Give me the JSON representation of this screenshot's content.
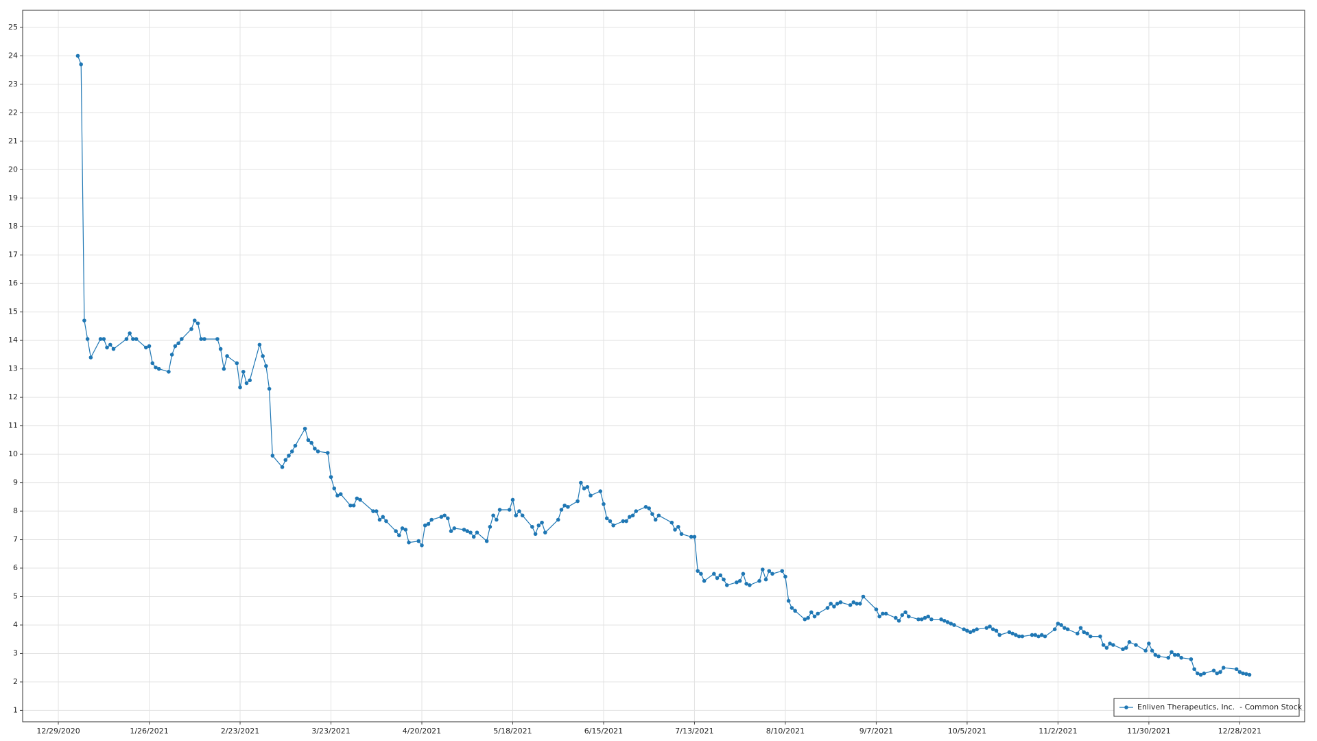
{
  "chart_data": {
    "type": "line",
    "x": [
      "1/4/2021",
      "1/5/2021",
      "1/6/2021",
      "1/7/2021",
      "1/8/2021",
      "1/11/2021",
      "1/12/2021",
      "1/13/2021",
      "1/14/2021",
      "1/15/2021",
      "1/19/2021",
      "1/20/2021",
      "1/21/2021",
      "1/22/2021",
      "1/25/2021",
      "1/26/2021",
      "1/27/2021",
      "1/28/2021",
      "1/29/2021",
      "2/1/2021",
      "2/2/2021",
      "2/3/2021",
      "2/4/2021",
      "2/5/2021",
      "2/8/2021",
      "2/9/2021",
      "2/10/2021",
      "2/11/2021",
      "2/12/2021",
      "2/16/2021",
      "2/17/2021",
      "2/18/2021",
      "2/19/2021",
      "2/22/2021",
      "2/23/2021",
      "2/24/2021",
      "2/25/2021",
      "2/26/2021",
      "3/1/2021",
      "3/2/2021",
      "3/3/2021",
      "3/4/2021",
      "3/5/2021",
      "3/8/2021",
      "3/9/2021",
      "3/10/2021",
      "3/11/2021",
      "3/12/2021",
      "3/15/2021",
      "3/16/2021",
      "3/17/2021",
      "3/18/2021",
      "3/19/2021",
      "3/22/2021",
      "3/23/2021",
      "3/24/2021",
      "3/25/2021",
      "3/26/2021",
      "3/29/2021",
      "3/30/2021",
      "3/31/2021",
      "4/1/2021",
      "4/5/2021",
      "4/6/2021",
      "4/7/2021",
      "4/8/2021",
      "4/9/2021",
      "4/12/2021",
      "4/13/2021",
      "4/14/2021",
      "4/15/2021",
      "4/16/2021",
      "4/19/2021",
      "4/20/2021",
      "4/21/2021",
      "4/22/2021",
      "4/23/2021",
      "4/26/2021",
      "4/27/2021",
      "4/28/2021",
      "4/29/2021",
      "4/30/2021",
      "5/3/2021",
      "5/4/2021",
      "5/5/2021",
      "5/6/2021",
      "5/7/2021",
      "5/10/2021",
      "5/11/2021",
      "5/12/2021",
      "5/13/2021",
      "5/14/2021",
      "5/17/2021",
      "5/18/2021",
      "5/19/2021",
      "5/20/2021",
      "5/21/2021",
      "5/24/2021",
      "5/25/2021",
      "5/26/2021",
      "5/27/2021",
      "5/28/2021",
      "6/1/2021",
      "6/2/2021",
      "6/3/2021",
      "6/4/2021",
      "6/7/2021",
      "6/8/2021",
      "6/9/2021",
      "6/10/2021",
      "6/11/2021",
      "6/14/2021",
      "6/15/2021",
      "6/16/2021",
      "6/17/2021",
      "6/18/2021",
      "6/21/2021",
      "6/22/2021",
      "6/23/2021",
      "6/24/2021",
      "6/25/2021",
      "6/28/2021",
      "6/29/2021",
      "6/30/2021",
      "7/1/2021",
      "7/2/2021",
      "7/6/2021",
      "7/7/2021",
      "7/8/2021",
      "7/9/2021",
      "7/12/2021",
      "7/13/2021",
      "7/14/2021",
      "7/15/2021",
      "7/16/2021",
      "7/19/2021",
      "7/20/2021",
      "7/21/2021",
      "7/22/2021",
      "7/23/2021",
      "7/26/2021",
      "7/27/2021",
      "7/28/2021",
      "7/29/2021",
      "7/30/2021",
      "8/2/2021",
      "8/3/2021",
      "8/4/2021",
      "8/5/2021",
      "8/6/2021",
      "8/9/2021",
      "8/10/2021",
      "8/11/2021",
      "8/12/2021",
      "8/13/2021",
      "8/16/2021",
      "8/17/2021",
      "8/18/2021",
      "8/19/2021",
      "8/20/2021",
      "8/23/2021",
      "8/24/2021",
      "8/25/2021",
      "8/26/2021",
      "8/27/2021",
      "8/30/2021",
      "8/31/2021",
      "9/1/2021",
      "9/2/2021",
      "9/3/2021",
      "9/7/2021",
      "9/8/2021",
      "9/9/2021",
      "9/10/2021",
      "9/13/2021",
      "9/14/2021",
      "9/15/2021",
      "9/16/2021",
      "9/17/2021",
      "9/20/2021",
      "9/21/2021",
      "9/22/2021",
      "9/23/2021",
      "9/24/2021",
      "9/27/2021",
      "9/28/2021",
      "9/29/2021",
      "9/30/2021",
      "10/1/2021",
      "10/4/2021",
      "10/5/2021",
      "10/6/2021",
      "10/7/2021",
      "10/8/2021",
      "10/11/2021",
      "10/12/2021",
      "10/13/2021",
      "10/14/2021",
      "10/15/2021",
      "10/18/2021",
      "10/19/2021",
      "10/20/2021",
      "10/21/2021",
      "10/22/2021",
      "10/25/2021",
      "10/26/2021",
      "10/27/2021",
      "10/28/2021",
      "10/29/2021",
      "11/1/2021",
      "11/2/2021",
      "11/3/2021",
      "11/4/2021",
      "11/5/2021",
      "11/8/2021",
      "11/9/2021",
      "11/10/2021",
      "11/11/2021",
      "11/12/2021",
      "11/15/2021",
      "11/16/2021",
      "11/17/2021",
      "11/18/2021",
      "11/19/2021",
      "11/22/2021",
      "11/23/2021",
      "11/24/2021",
      "11/26/2021",
      "11/29/2021",
      "11/30/2021",
      "12/1/2021",
      "12/2/2021",
      "12/3/2021",
      "12/6/2021",
      "12/7/2021",
      "12/8/2021",
      "12/9/2021",
      "12/10/2021",
      "12/13/2021",
      "12/14/2021",
      "12/15/2021",
      "12/16/2021",
      "12/17/2021",
      "12/20/2021",
      "12/21/2021",
      "12/22/2021",
      "12/23/2021",
      "12/27/2021",
      "12/28/2021",
      "12/29/2021",
      "12/30/2021",
      "12/31/2021"
    ],
    "series": [
      {
        "name": "Enliven Therapeutics, Inc.  - Common Stock",
        "color": "#1f77b4",
        "values": [
          24.0,
          23.7,
          14.7,
          14.05,
          13.4,
          14.05,
          14.05,
          13.75,
          13.85,
          13.7,
          14.05,
          14.25,
          14.05,
          14.05,
          13.75,
          13.8,
          13.2,
          13.05,
          13.0,
          12.9,
          13.5,
          13.8,
          13.9,
          14.05,
          14.4,
          14.7,
          14.6,
          14.05,
          14.05,
          14.05,
          13.7,
          13.0,
          13.45,
          13.2,
          12.35,
          12.9,
          12.5,
          12.6,
          13.85,
          13.45,
          13.1,
          12.3,
          9.95,
          9.55,
          9.8,
          9.95,
          10.1,
          10.3,
          10.9,
          10.5,
          10.4,
          10.2,
          10.1,
          10.05,
          9.2,
          8.8,
          8.55,
          8.6,
          8.2,
          8.2,
          8.45,
          8.4,
          8.0,
          8.0,
          7.7,
          7.8,
          7.65,
          7.3,
          7.15,
          7.4,
          7.35,
          6.9,
          6.95,
          6.8,
          7.5,
          7.55,
          7.7,
          7.8,
          7.85,
          7.75,
          7.3,
          7.4,
          7.35,
          7.3,
          7.25,
          7.1,
          7.25,
          6.95,
          7.45,
          7.85,
          7.7,
          8.05,
          8.05,
          8.4,
          7.85,
          8.0,
          7.85,
          7.45,
          7.2,
          7.5,
          7.6,
          7.25,
          7.7,
          8.05,
          8.2,
          8.15,
          8.35,
          9.0,
          8.8,
          8.85,
          8.55,
          8.7,
          8.25,
          7.75,
          7.65,
          7.5,
          7.65,
          7.65,
          7.8,
          7.85,
          8.0,
          8.15,
          8.1,
          7.9,
          7.7,
          7.85,
          7.6,
          7.35,
          7.45,
          7.2,
          7.1,
          7.1,
          5.9,
          5.8,
          5.55,
          5.8,
          5.65,
          5.75,
          5.6,
          5.4,
          5.5,
          5.55,
          5.8,
          5.45,
          5.4,
          5.55,
          5.95,
          5.6,
          5.9,
          5.8,
          5.9,
          5.7,
          4.85,
          4.6,
          4.5,
          4.2,
          4.25,
          4.45,
          4.3,
          4.4,
          4.6,
          4.75,
          4.65,
          4.75,
          4.8,
          4.7,
          4.8,
          4.75,
          4.75,
          5.0,
          4.55,
          4.3,
          4.4,
          4.4,
          4.25,
          4.15,
          4.35,
          4.45,
          4.3,
          4.2,
          4.2,
          4.25,
          4.3,
          4.2,
          4.2,
          4.15,
          4.1,
          4.05,
          4.0,
          3.85,
          3.8,
          3.75,
          3.8,
          3.85,
          3.9,
          3.95,
          3.85,
          3.8,
          3.65,
          3.75,
          3.7,
          3.65,
          3.6,
          3.6,
          3.65,
          3.65,
          3.6,
          3.65,
          3.6,
          3.85,
          4.05,
          4.0,
          3.9,
          3.85,
          3.7,
          3.9,
          3.75,
          3.7,
          3.6,
          3.6,
          3.3,
          3.2,
          3.35,
          3.3,
          3.15,
          3.2,
          3.4,
          3.3,
          3.1,
          3.35,
          3.1,
          2.95,
          2.9,
          2.85,
          3.05,
          2.95,
          2.95,
          2.85,
          2.8,
          2.45,
          2.3,
          2.25,
          2.3,
          2.4,
          2.3,
          2.35,
          2.5,
          2.45,
          2.35,
          2.3,
          2.28,
          2.25
        ]
      }
    ],
    "xlim": [
      "12/18/2020",
      "1/17/2022"
    ],
    "xticks": [
      "12/29/2020",
      "1/26/2021",
      "2/23/2021",
      "3/23/2021",
      "4/20/2021",
      "5/18/2021",
      "6/15/2021",
      "7/13/2021",
      "8/10/2021",
      "9/7/2021",
      "10/5/2021",
      "11/2/2021",
      "11/30/2021",
      "12/28/2021"
    ],
    "ylim": [
      0.6,
      25.6
    ],
    "yticks": [
      1,
      2,
      3,
      4,
      5,
      6,
      7,
      8,
      9,
      10,
      11,
      12,
      13,
      14,
      15,
      16,
      17,
      18,
      19,
      20,
      21,
      22,
      23,
      24,
      25
    ],
    "grid": true,
    "legend": "bottom-right"
  }
}
